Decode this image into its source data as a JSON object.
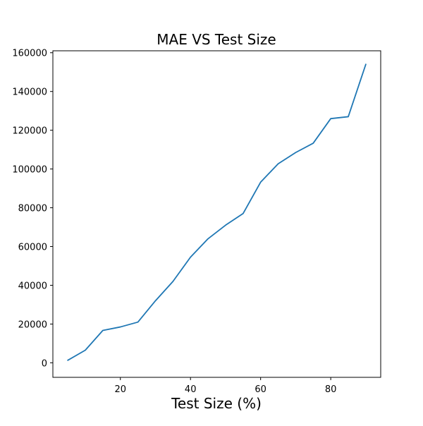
{
  "chart_data": {
    "type": "line",
    "title": "MAE VS Test Size",
    "xlabel": "Test Size (%)",
    "ylabel": "",
    "xlim": [
      0.75,
      94.25
    ],
    "ylim": [
      -7500,
      161000
    ],
    "xticks": [
      20,
      40,
      60,
      80
    ],
    "yticks": [
      0,
      20000,
      40000,
      60000,
      80000,
      100000,
      120000,
      140000,
      160000
    ],
    "grid": false,
    "series": [
      {
        "color": "#1f77b4",
        "x": [
          5,
          10,
          15,
          20,
          25,
          30,
          35,
          40,
          45,
          50,
          55,
          60,
          65,
          70,
          75,
          80,
          85,
          90
        ],
        "y": [
          1300,
          6500,
          16700,
          18500,
          21000,
          32000,
          42000,
          54500,
          64000,
          71000,
          77000,
          93200,
          102700,
          108500,
          113300,
          126000,
          127000,
          154000
        ]
      }
    ]
  }
}
